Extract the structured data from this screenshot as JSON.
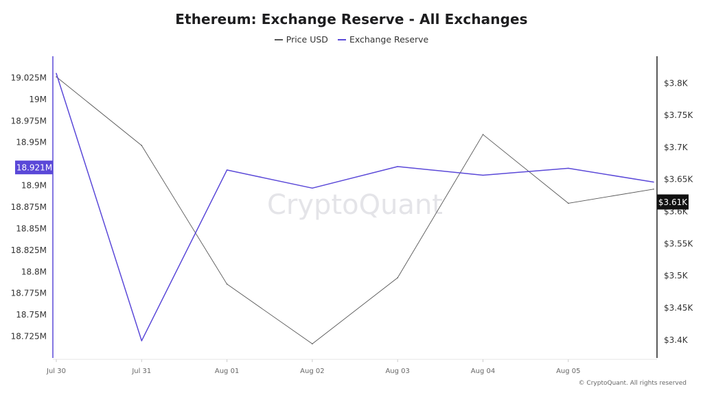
{
  "header": {
    "title": "Ethereum: Exchange Reserve - All Exchanges"
  },
  "legend": [
    {
      "name": "Price USD",
      "color": "#555555"
    },
    {
      "name": "Exchange Reserve",
      "color": "#5a48d8"
    }
  ],
  "watermark": "CryptoQuant",
  "footer": "© CryptoQuant. All rights reserved",
  "chart_data": {
    "type": "line",
    "x": [
      "Jul 30",
      "Jul 31",
      "Aug 01",
      "Aug 02",
      "Aug 03",
      "Aug 04",
      "Aug 05",
      ""
    ],
    "x_tick_labels": [
      "Jul 30",
      "Jul 31",
      "Aug 01",
      "Aug 02",
      "Aug 03",
      "Aug 04",
      "Aug 05"
    ],
    "series": [
      {
        "name": "Price USD",
        "axis": "right",
        "color": "#555555",
        "values": [
          3810,
          3703,
          3487,
          3394,
          3497,
          3720,
          3613,
          3635
        ]
      },
      {
        "name": "Exchange Reserve",
        "axis": "left",
        "color": "#5a48d8",
        "values": [
          19030000,
          18720000,
          18918000,
          18897000,
          18922000,
          18912000,
          18920000,
          18904000
        ]
      }
    ],
    "left_axis": {
      "ylim": [
        18700000,
        19050000
      ],
      "ticks": [
        18725000,
        18750000,
        18775000,
        18800000,
        18825000,
        18850000,
        18875000,
        18900000,
        18925000,
        18950000,
        18975000,
        19000000,
        19025000
      ],
      "tick_labels": [
        "18.725M",
        "18.75M",
        "18.775M",
        "18.8M",
        "18.825M",
        "18.85M",
        "18.875M",
        "18.9M",
        "",
        "18.95M",
        "18.975M",
        "19M",
        "19.025M"
      ],
      "highlight_label": "18.921M",
      "highlight_value": 18921000,
      "highlight_color": "#5a48d8"
    },
    "right_axis": {
      "ylim": [
        3372,
        3842
      ],
      "ticks": [
        3400,
        3450,
        3500,
        3550,
        3600,
        3650,
        3700,
        3750,
        3800
      ],
      "tick_labels": [
        "$3.4K",
        "$3.45K",
        "$3.5K",
        "$3.55K",
        "$3.6K",
        "$3.65K",
        "$3.7K",
        "$3.75K",
        "$3.8K"
      ],
      "highlight_label": "$3.61K",
      "highlight_value": 3615,
      "highlight_color": "#111111"
    },
    "grid": false,
    "legend_position": "top-center"
  }
}
